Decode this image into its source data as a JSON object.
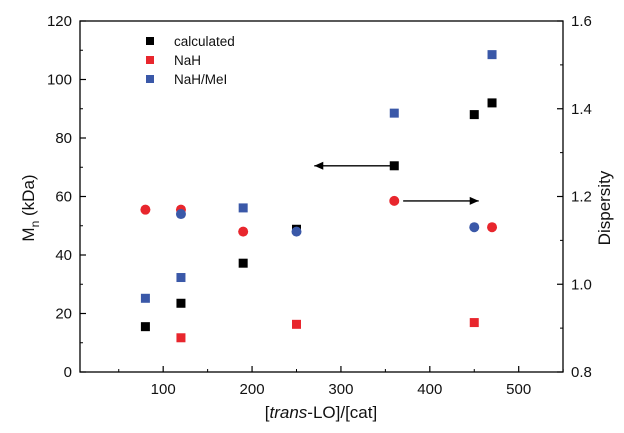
{
  "chart_data": {
    "type": "scatter",
    "xlabel_prefix": "[",
    "xlabel_italic": "trans",
    "xlabel_suffix": "-LO]/[cat]",
    "ylabel_main": "M",
    "ylabel_sub": "n",
    "ylabel_unit": " (kDa)",
    "y2label": "Dispersity",
    "xlim": [
      0,
      550
    ],
    "ylim": [
      0,
      120
    ],
    "y2lim": [
      0.8,
      1.6
    ],
    "xticks": [
      100,
      200,
      300,
      400,
      500
    ],
    "yticks": [
      0,
      20,
      40,
      60,
      80,
      100,
      120
    ],
    "y2ticks": [
      0.8,
      1.0,
      1.2,
      1.4,
      1.6
    ],
    "y2tick_labels": [
      "0.8",
      "1.0",
      "1.2",
      "1.4",
      "1.6"
    ],
    "grid": false,
    "legend_position": "top-left",
    "series": [
      {
        "name": "calculated",
        "color": "#000000",
        "marker": "square",
        "axis": "left",
        "x": [
          80,
          120,
          190,
          250,
          360,
          450,
          470
        ],
        "y": [
          15.5,
          23.5,
          37.2,
          48.8,
          70.5,
          88,
          92
        ]
      },
      {
        "name": "NaH",
        "color": "#e8262d",
        "marker": "square",
        "axis": "left",
        "x": [
          120,
          250,
          450
        ],
        "y": [
          11.7,
          16.3,
          16.9
        ]
      },
      {
        "name": "NaH/MeI",
        "color": "#3a58a8",
        "marker": "square",
        "axis": "left",
        "x": [
          80,
          120,
          190,
          360,
          470
        ],
        "y": [
          25.2,
          32.3,
          56.1,
          88.5,
          108.5
        ]
      }
    ],
    "dispersity_series": [
      {
        "color": "#e8262d",
        "marker": "circle",
        "axis": "right",
        "x": [
          80,
          120,
          190,
          360,
          470
        ],
        "y": [
          1.17,
          1.17,
          1.12,
          1.19,
          1.13
        ]
      },
      {
        "color": "#3a58a8",
        "marker": "circle",
        "axis": "right",
        "x": [
          120,
          250,
          450
        ],
        "y": [
          1.16,
          1.12,
          1.13
        ]
      }
    ],
    "annotations": [
      {
        "type": "arrow",
        "direction": "left",
        "points_to_axis": "left",
        "from": [
          360,
          70.5
        ],
        "to": [
          270,
          70.5
        ]
      },
      {
        "type": "arrow",
        "direction": "right",
        "points_to_axis": "right",
        "from": [
          370,
          1.19
        ],
        "to": [
          455,
          1.19
        ]
      }
    ]
  }
}
